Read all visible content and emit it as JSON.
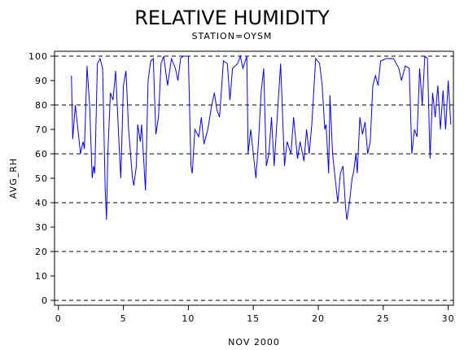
{
  "chart_data": {
    "type": "line",
    "title": "RELATIVE HUMIDITY",
    "subtitle": "STATION=OYSM",
    "x_label": "NOV 2000",
    "y_label": "AVG_RH",
    "xlim": [
      -0.3,
      30.4
    ],
    "ylim": [
      -2,
      102
    ],
    "xticks": [
      0,
      5,
      10,
      15,
      20,
      25,
      30
    ],
    "yticks": [
      0,
      10,
      20,
      30,
      40,
      50,
      60,
      70,
      80,
      90,
      100
    ],
    "grid_values": [
      0,
      20,
      40,
      60,
      80,
      100
    ],
    "series": [
      {
        "name": "AVG_RH",
        "color": "#0000ff",
        "x": [
          1.0,
          1.1,
          1.3,
          1.5,
          1.7,
          1.9,
          2.0,
          2.2,
          2.4,
          2.6,
          2.7,
          2.8,
          3.0,
          3.2,
          3.4,
          3.5,
          3.6,
          3.7,
          3.8,
          4.0,
          4.2,
          4.4,
          4.7,
          4.8,
          5.0,
          5.2,
          5.4,
          5.7,
          5.8,
          6.0,
          6.1,
          6.3,
          6.4,
          6.7,
          6.9,
          7.1,
          7.3,
          7.5,
          7.7,
          7.9,
          8.1,
          8.4,
          8.7,
          9.0,
          9.2,
          9.4,
          9.6,
          10.0,
          10.2,
          10.3,
          10.5,
          10.8,
          11.0,
          11.2,
          11.5,
          11.8,
          12.0,
          12.2,
          12.4,
          12.7,
          13.0,
          13.2,
          13.4,
          13.8,
          14.0,
          14.2,
          14.5,
          14.6,
          14.8,
          15.0,
          15.2,
          15.4,
          15.6,
          15.8,
          16.0,
          16.2,
          16.4,
          16.6,
          16.9,
          17.1,
          17.4,
          17.6,
          17.9,
          18.1,
          18.4,
          18.6,
          18.9,
          19.1,
          19.3,
          19.5,
          19.8,
          20.1,
          20.3,
          20.5,
          20.6,
          20.8,
          20.9,
          21.1,
          21.3,
          21.5,
          21.7,
          21.9,
          22.1,
          22.2,
          22.4,
          22.6,
          22.7,
          22.9,
          23.0,
          23.2,
          23.4,
          23.6,
          23.8,
          24.0,
          24.2,
          24.4,
          24.6,
          24.8,
          25.2,
          25.8,
          26.2,
          26.4,
          26.7,
          27.0,
          27.2,
          27.4,
          27.6,
          27.8,
          28.0,
          28.2,
          28.4,
          28.6,
          28.8,
          29.0,
          29.2,
          29.4,
          29.6,
          29.8,
          30.0,
          30.2
        ],
        "values": [
          92,
          66,
          80,
          70,
          60,
          65,
          62,
          96,
          80,
          50,
          55,
          52,
          97,
          99,
          95,
          70,
          45,
          33,
          60,
          85,
          82,
          94,
          60,
          50,
          88,
          94,
          70,
          50,
          47,
          55,
          72,
          65,
          72,
          45,
          90,
          98,
          99,
          68,
          75,
          97,
          100,
          88,
          99,
          95,
          90,
          99,
          100,
          100,
          55,
          52,
          70,
          67,
          75,
          64,
          70,
          80,
          85,
          78,
          75,
          98,
          97,
          82,
          95,
          97,
          100,
          95,
          100,
          60,
          70,
          60,
          50,
          65,
          85,
          95,
          55,
          60,
          75,
          55,
          80,
          97,
          55,
          65,
          60,
          75,
          58,
          65,
          57,
          70,
          60,
          72,
          99,
          97,
          88,
          70,
          72,
          52,
          84,
          60,
          50,
          40,
          52,
          55,
          38,
          33,
          40,
          50,
          52,
          60,
          52,
          75,
          68,
          73,
          60,
          65,
          88,
          92,
          88,
          98,
          99,
          99,
          95,
          90,
          96,
          95,
          60,
          70,
          67,
          95,
          80,
          100,
          99,
          58,
          85,
          75,
          88,
          70,
          86,
          70,
          90,
          72
        ]
      }
    ]
  }
}
